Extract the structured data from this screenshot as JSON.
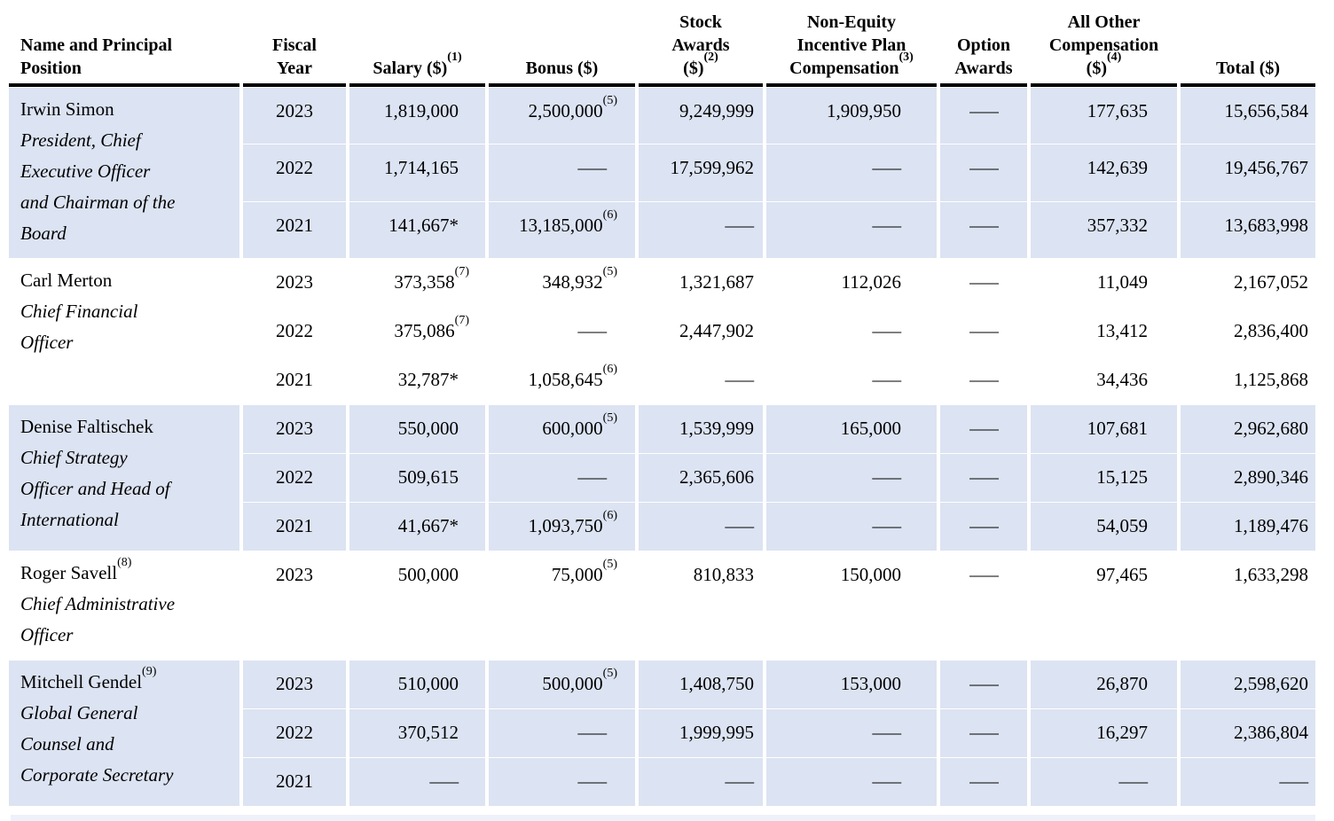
{
  "colors": {
    "row_shade": "#dce3f2",
    "partial_next_row": "#eef1f9",
    "header_rule": "#000000",
    "text": "#000000"
  },
  "table": {
    "columns": [
      {
        "id": "name",
        "lines": [
          "Name and Principal",
          "Position"
        ]
      },
      {
        "id": "year",
        "lines": [
          "Fiscal",
          "Year"
        ]
      },
      {
        "id": "salary",
        "lines": [
          {
            "t": "Salary ($)",
            "s": "(1)"
          }
        ]
      },
      {
        "id": "bonus",
        "lines": [
          "Bonus ($)"
        ]
      },
      {
        "id": "stock",
        "lines": [
          "Stock",
          "Awards",
          {
            "t": "($)",
            "s": "(2)"
          }
        ]
      },
      {
        "id": "noneq",
        "lines": [
          "Non-Equity",
          "Incentive Plan",
          {
            "t": "Compensation",
            "s": "(3)"
          }
        ]
      },
      {
        "id": "option",
        "lines": [
          "Option",
          "Awards"
        ]
      },
      {
        "id": "other",
        "lines": [
          "All Other",
          "Compensation",
          {
            "t": "($)",
            "s": "(4)"
          }
        ]
      },
      {
        "id": "total",
        "lines": [
          "Total ($)"
        ]
      }
    ],
    "groups": [
      {
        "shaded": true,
        "name": {
          "t": "Irwin Simon"
        },
        "title_lines": [
          "President, Chief",
          "Executive Officer",
          "and Chairman of the",
          "Board"
        ],
        "rows": [
          {
            "year": "2023",
            "cells": [
              "1,819,000",
              {
                "t": "2,500,000",
                "s": "(5)"
              },
              "9,249,999",
              "1,909,950",
              "—",
              "177,635",
              "15,656,584"
            ]
          },
          {
            "year": "2022",
            "cells": [
              "1,714,165",
              "—",
              "17,599,962",
              "—",
              "—",
              "142,639",
              "19,456,767"
            ]
          },
          {
            "year": "2021",
            "cells": [
              "141,667*",
              {
                "t": "13,185,000",
                "s": "(6)"
              },
              "—",
              "—",
              "—",
              "357,332",
              "13,683,998"
            ]
          }
        ]
      },
      {
        "shaded": false,
        "name": {
          "t": "Carl Merton"
        },
        "title_lines": [
          "Chief Financial",
          "Officer"
        ],
        "rows": [
          {
            "year": "2023",
            "cells": [
              {
                "t": "373,358",
                "s": "(7)"
              },
              {
                "t": "348,932",
                "s": "(5)"
              },
              "1,321,687",
              "112,026",
              "—",
              "11,049",
              "2,167,052"
            ]
          },
          {
            "year": "2022",
            "cells": [
              {
                "t": "375,086",
                "s": "(7)"
              },
              "—",
              "2,447,902",
              "—",
              "—",
              "13,412",
              "2,836,400"
            ]
          },
          {
            "year": "2021",
            "cells": [
              "32,787*",
              {
                "t": "1,058,645",
                "s": "(6)"
              },
              "—",
              "—",
              "—",
              "34,436",
              "1,125,868"
            ]
          }
        ]
      },
      {
        "shaded": true,
        "name": {
          "t": "Denise Faltischek"
        },
        "title_lines": [
          "Chief Strategy",
          "Officer and Head of",
          "International"
        ],
        "rows": [
          {
            "year": "2023",
            "cells": [
              "550,000",
              {
                "t": "600,000",
                "s": "(5)"
              },
              "1,539,999",
              "165,000",
              "—",
              "107,681",
              "2,962,680"
            ]
          },
          {
            "year": "2022",
            "cells": [
              "509,615",
              "—",
              "2,365,606",
              "—",
              "—",
              "15,125",
              "2,890,346"
            ]
          },
          {
            "year": "2021",
            "cells": [
              "41,667*",
              {
                "t": "1,093,750",
                "s": "(6)"
              },
              "—",
              "—",
              "—",
              "54,059",
              "1,189,476"
            ]
          }
        ]
      },
      {
        "shaded": false,
        "name": {
          "t": "Roger Savell",
          "s": "(8)"
        },
        "title_lines": [
          "Chief Administrative",
          "Officer"
        ],
        "rows": [
          {
            "year": "2023",
            "cells": [
              "500,000",
              {
                "t": "75,000",
                "s": "(5)"
              },
              "810,833",
              "150,000",
              "—",
              "97,465",
              "1,633,298"
            ]
          }
        ]
      },
      {
        "shaded": true,
        "name": {
          "t": "Mitchell Gendel",
          "s": "(9)"
        },
        "title_lines": [
          "Global General",
          "Counsel and",
          "Corporate Secretary"
        ],
        "rows": [
          {
            "year": "2023",
            "cells": [
              "510,000",
              {
                "t": "500,000",
                "s": "(5)"
              },
              "1,408,750",
              "153,000",
              "—",
              "26,870",
              "2,598,620"
            ]
          },
          {
            "year": "2022",
            "cells": [
              "370,512",
              "—",
              "1,999,995",
              "—",
              "—",
              "16,297",
              "2,386,804"
            ]
          },
          {
            "year": "2021",
            "cells": [
              "—",
              "—",
              "—",
              "—",
              "—",
              "—",
              "—"
            ]
          }
        ]
      }
    ]
  }
}
